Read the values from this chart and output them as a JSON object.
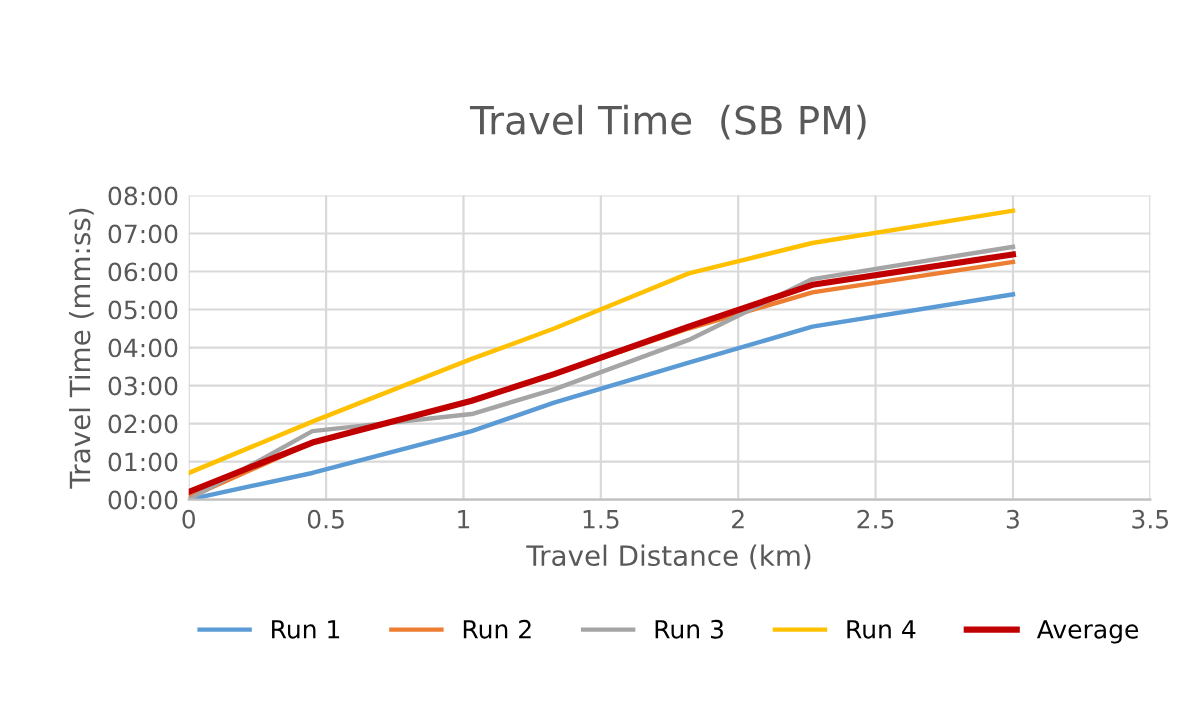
{
  "chart_data": {
    "type": "line",
    "title": "Travel Time  (SB PM)",
    "xlabel": "Travel Distance (km)",
    "ylabel": "Travel Time (mm:ss)",
    "x": [
      0,
      0.45,
      1.03,
      1.33,
      1.82,
      2.27,
      3.0
    ],
    "series": [
      {
        "name": "Run 1",
        "color": "#5b9bd5",
        "values": [
          0,
          0.7,
          1.8,
          2.55,
          3.6,
          4.55,
          5.4
        ]
      },
      {
        "name": "Run 2",
        "color": "#ed7d31",
        "values": [
          0.05,
          1.5,
          2.6,
          3.3,
          4.5,
          5.45,
          6.25
        ]
      },
      {
        "name": "Run 3",
        "color": "#a5a5a5",
        "values": [
          0,
          1.8,
          2.25,
          2.9,
          4.2,
          5.8,
          6.65
        ]
      },
      {
        "name": "Run 4",
        "color": "#ffc000",
        "values": [
          0.7,
          2.05,
          3.7,
          4.5,
          5.95,
          6.75,
          7.6
        ]
      },
      {
        "name": "Average",
        "color": "#c00000",
        "values": [
          0.2,
          1.5,
          2.6,
          3.3,
          4.55,
          5.65,
          6.45
        ]
      }
    ],
    "xlim": [
      0,
      3.5
    ],
    "xticks": [
      0,
      0.5,
      1,
      1.5,
      2,
      2.5,
      3,
      3.5
    ],
    "ylim": [
      0,
      8
    ],
    "yticks": [
      {
        "value": 0,
        "label": "00:00"
      },
      {
        "value": 1,
        "label": "01:00"
      },
      {
        "value": 2,
        "label": "02:00"
      },
      {
        "value": 3,
        "label": "03:00"
      },
      {
        "value": 4,
        "label": "04:00"
      },
      {
        "value": 5,
        "label": "05:00"
      },
      {
        "value": 6,
        "label": "06:00"
      },
      {
        "value": 7,
        "label": "07:00"
      },
      {
        "value": 8,
        "label": "08:00"
      }
    ],
    "grid": true,
    "legend": "bottom",
    "marker": "none",
    "line_style": "solid"
  }
}
